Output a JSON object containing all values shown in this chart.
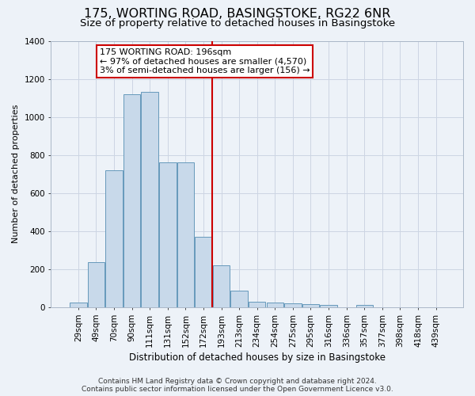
{
  "title": "175, WORTING ROAD, BASINGSTOKE, RG22 6NR",
  "subtitle": "Size of property relative to detached houses in Basingstoke",
  "xlabel": "Distribution of detached houses by size in Basingstoke",
  "ylabel": "Number of detached properties",
  "footer1": "Contains HM Land Registry data © Crown copyright and database right 2024.",
  "footer2": "Contains public sector information licensed under the Open Government Licence v3.0.",
  "bins": [
    "29sqm",
    "49sqm",
    "70sqm",
    "90sqm",
    "111sqm",
    "131sqm",
    "152sqm",
    "172sqm",
    "193sqm",
    "213sqm",
    "234sqm",
    "254sqm",
    "275sqm",
    "295sqm",
    "316sqm",
    "336sqm",
    "357sqm",
    "377sqm",
    "398sqm",
    "418sqm",
    "439sqm"
  ],
  "values": [
    25,
    235,
    720,
    1120,
    1130,
    760,
    760,
    370,
    220,
    85,
    30,
    25,
    20,
    17,
    13,
    0,
    10,
    0,
    0,
    0,
    0
  ],
  "bar_color": "#c8d9ea",
  "bar_edge_color": "#6699bb",
  "vline_color": "#cc0000",
  "vline_x": 7.5,
  "annotation_title": "175 WORTING ROAD: 196sqm",
  "annotation_line1": "← 97% of detached houses are smaller (4,570)",
  "annotation_line2": "3% of semi-detached houses are larger (156) →",
  "annotation_box_facecolor": "#ffffff",
  "annotation_box_edgecolor": "#cc0000",
  "ylim": [
    0,
    1400
  ],
  "yticks": [
    0,
    200,
    400,
    600,
    800,
    1000,
    1200,
    1400
  ],
  "grid_color": "#ccd5e3",
  "bg_color": "#edf2f8",
  "title_fontsize": 11.5,
  "subtitle_fontsize": 9.5,
  "axis_label_fontsize": 8.5,
  "ylabel_fontsize": 8,
  "tick_fontsize": 7.5,
  "footer_fontsize": 6.5,
  "annotation_fontsize": 8
}
